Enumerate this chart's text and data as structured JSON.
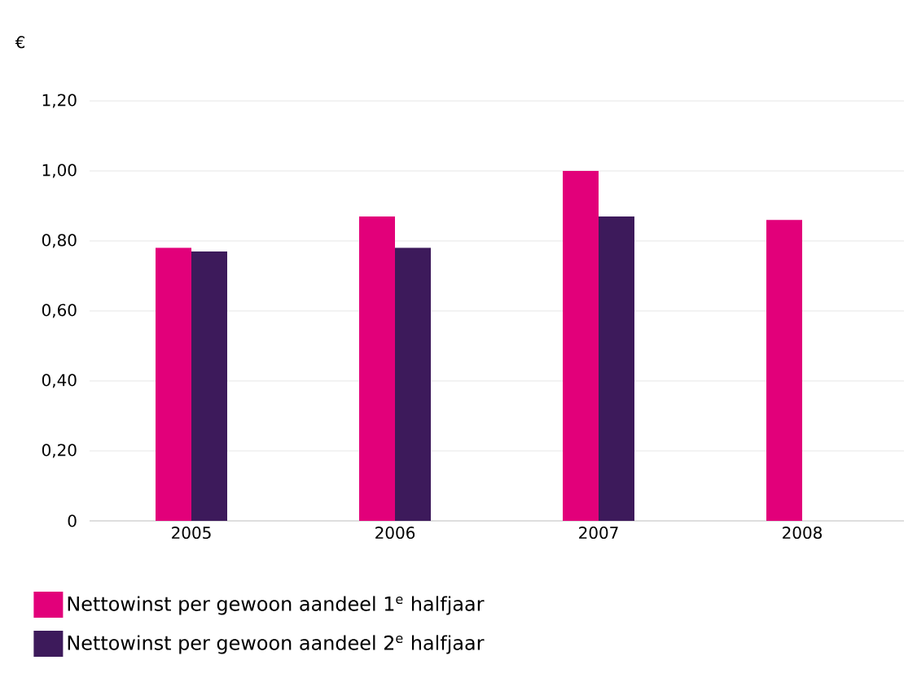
{
  "chart_data": {
    "type": "bar",
    "ylabel": "€",
    "categories": [
      "2005",
      "2006",
      "2007",
      "2008"
    ],
    "series": [
      {
        "name": "Nettowinst per gewoon aandeel 1$^{e}$ halfjaar",
        "color": "#e2007a",
        "values": [
          0.78,
          0.87,
          1.0,
          0.86
        ]
      },
      {
        "name": "Nettowinst per gewoon aandeel 2$^{e}$ halfjaar",
        "color": "#3d1a5b",
        "values": [
          0.77,
          0.78,
          0.87,
          null
        ]
      }
    ],
    "ylim": [
      0,
      1.2
    ],
    "yticks": [
      {
        "value": 0,
        "label": "0"
      },
      {
        "value": 0.2,
        "label": "0,20"
      },
      {
        "value": 0.4,
        "label": "0,40"
      },
      {
        "value": 0.6,
        "label": "0,60"
      },
      {
        "value": 0.8,
        "label": "0,80"
      },
      {
        "value": 1.0,
        "label": "1,00"
      },
      {
        "value": 1.2,
        "label": "1,20"
      }
    ],
    "grid": "y",
    "legend": "bottom"
  }
}
